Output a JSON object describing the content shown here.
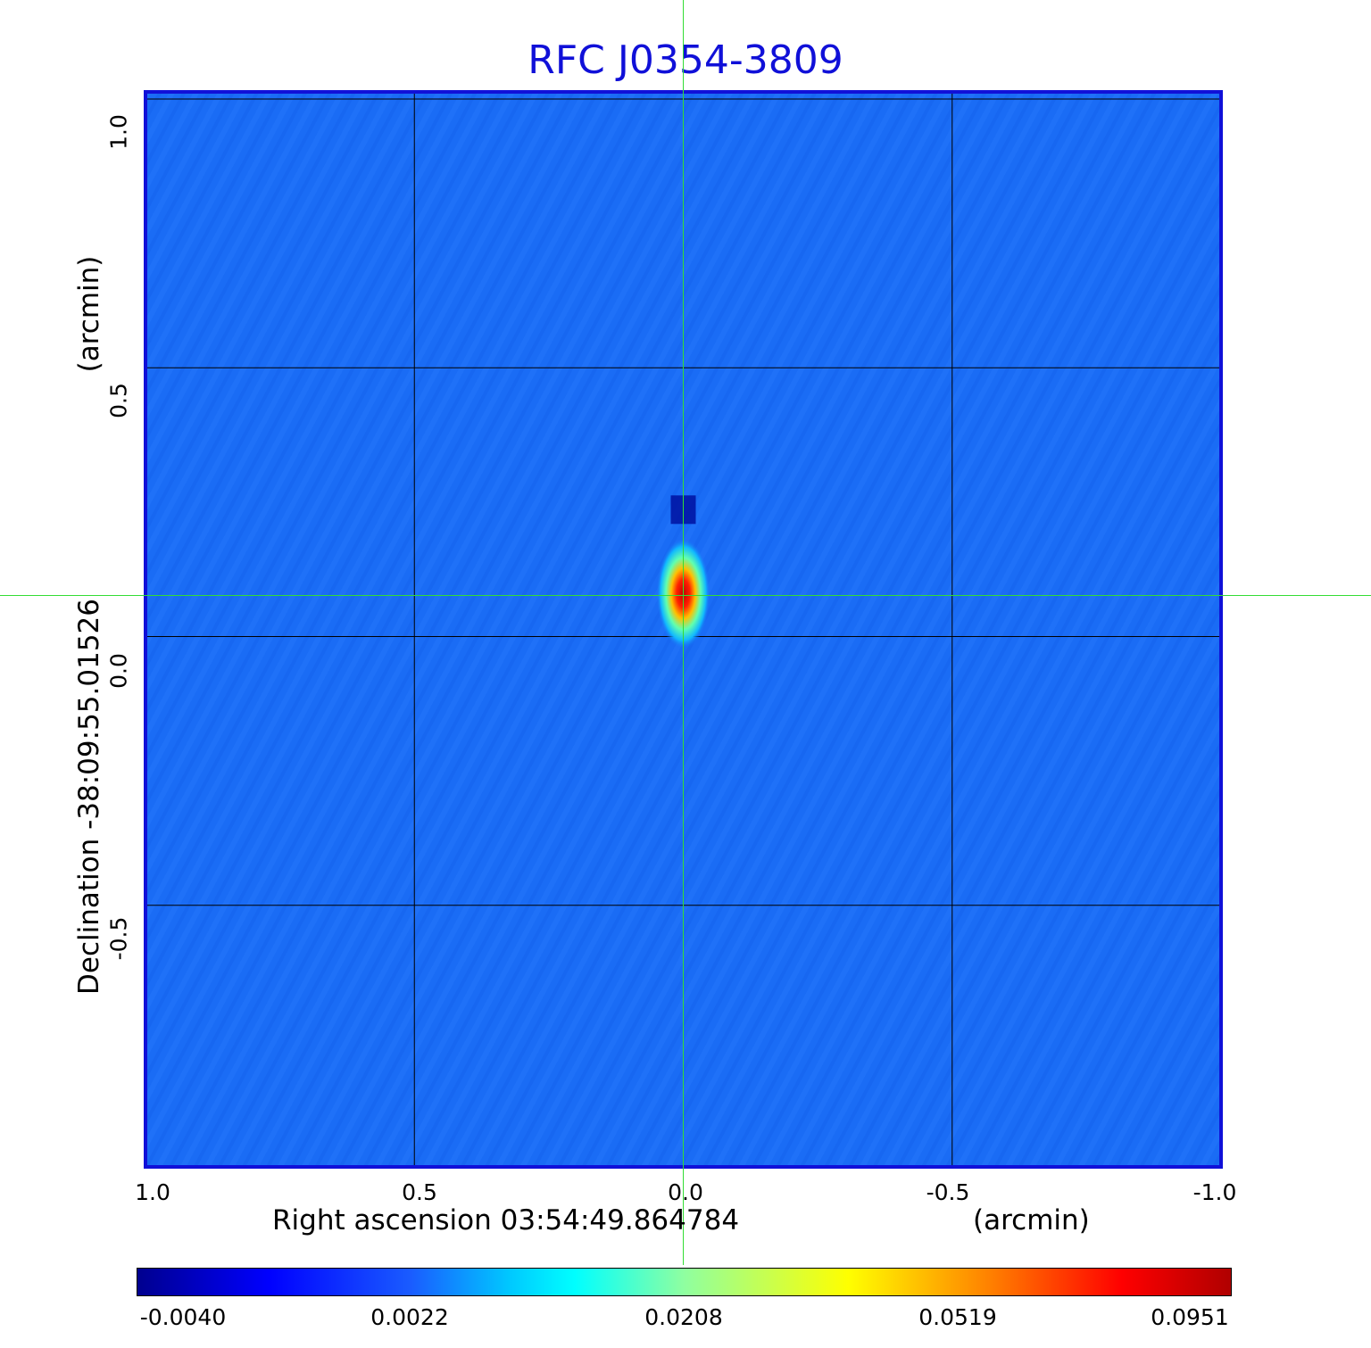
{
  "chart_data": {
    "type": "heatmap",
    "title": "RFC J0354-3809",
    "xlabel": "Right ascension  03:54:49.864784",
    "x_unit": "(arcmin)",
    "ylabel": "Declination  -38:09:55.01526",
    "y_unit": "(arcmin)",
    "xlim": [
      1.0,
      -1.0
    ],
    "ylim": [
      -1.0,
      1.0
    ],
    "x_ticks": [
      "1.0",
      "0.5",
      "0.0",
      "-0.5",
      "-1.0"
    ],
    "y_ticks": [
      "1.0",
      "0.5",
      "0.0",
      "-0.5"
    ],
    "grid": true,
    "colormap": "jet",
    "colorbar_labels": [
      "-0.0040",
      "0.0022",
      "0.0208",
      "0.0519",
      "0.0951"
    ],
    "colorbar_range": [
      -0.004,
      0.0951
    ],
    "crosshair": {
      "x": 0.0,
      "y": 0.08,
      "color": "#33dd33"
    },
    "source_peak": {
      "x": 0.0,
      "y": 0.08,
      "value": 0.0951
    },
    "colors": {
      "title": "#1010d8",
      "frame": "#1010d8",
      "background_field": "#1a6cf5"
    }
  }
}
